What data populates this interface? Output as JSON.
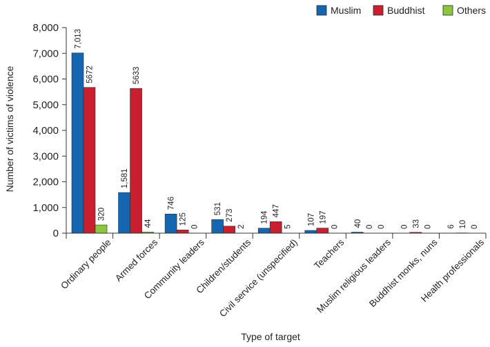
{
  "chart_data": {
    "type": "bar",
    "title": "",
    "xlabel": "Type of target",
    "ylabel": "Number of victims of violence",
    "ylim": [
      0,
      8000
    ],
    "yticks": [
      0,
      1000,
      2000,
      3000,
      4000,
      5000,
      6000,
      7000,
      8000
    ],
    "ytick_labels": [
      "0",
      "1,000",
      "2,000",
      "3,000",
      "4,000",
      "5,000",
      "6,000",
      "7,000",
      "8,000"
    ],
    "grid": false,
    "legend_position": "top-right",
    "categories": [
      "Ordinary people",
      "Armed forces",
      "Community leaders",
      "Children/students",
      "Civil service (unspecified)",
      "Teachers",
      "Muslim religious leaders",
      "Buddhist monks, nuns",
      "Health professionals"
    ],
    "series": [
      {
        "name": "Muslim",
        "color": "#1565b0",
        "values": [
          7013,
          1581,
          746,
          531,
          194,
          107,
          40,
          0,
          6
        ],
        "labels": [
          "7,013",
          "1,581",
          "746",
          "531",
          "194",
          "107",
          "40",
          "0",
          "6"
        ]
      },
      {
        "name": "Buddhist",
        "color": "#c8202f",
        "values": [
          5672,
          5633,
          125,
          273,
          447,
          197,
          0,
          33,
          10
        ],
        "labels": [
          "5672",
          "5633",
          "125",
          "273",
          "447",
          "197",
          "0",
          "33",
          "10"
        ]
      },
      {
        "name": "Others",
        "color": "#8cc63f",
        "values": [
          320,
          44,
          0,
          2,
          5,
          0,
          0,
          0,
          0
        ],
        "labels": [
          "320",
          "44",
          "0",
          "2",
          "5",
          "0",
          "0",
          "0",
          "0"
        ]
      }
    ]
  }
}
